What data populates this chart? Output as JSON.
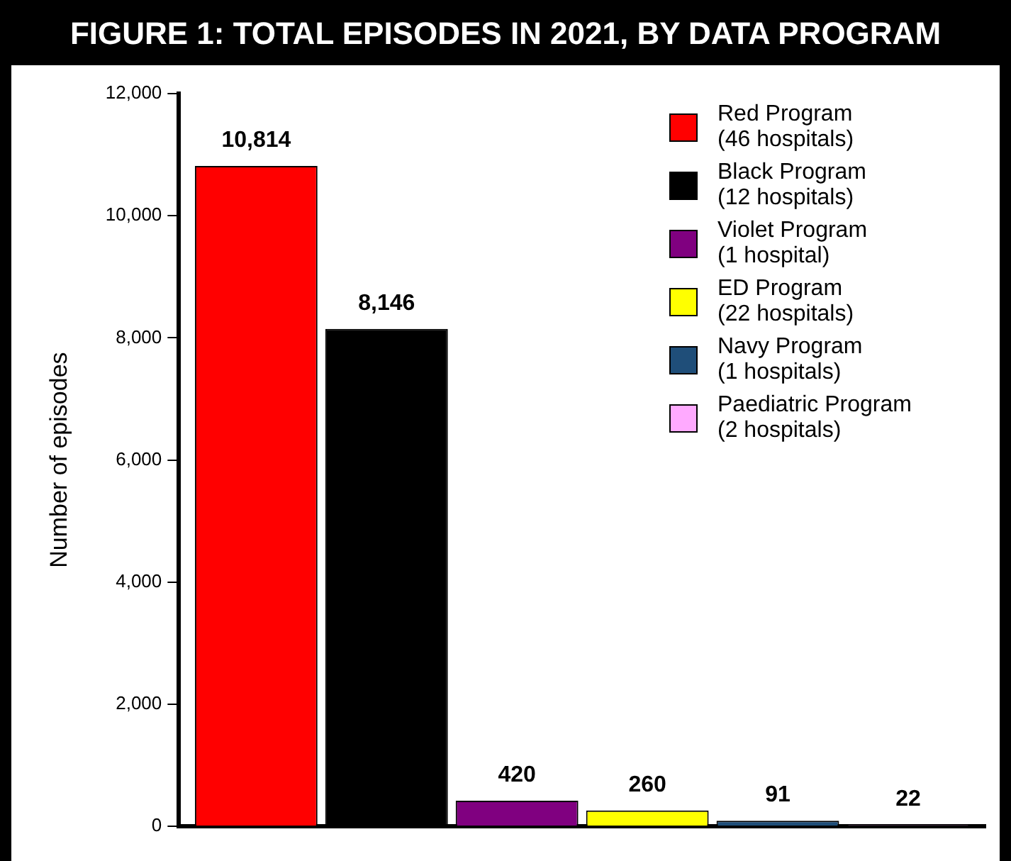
{
  "chart_data": {
    "type": "bar",
    "title": "FIGURE 1: TOTAL EPISODES IN 2021, BY DATA PROGRAM",
    "ylabel": "Number of episodes",
    "categories": [
      null
    ],
    "series": [
      {
        "name": "Red Program\n(46 hospitals)",
        "color": "#ff0000",
        "values": [
          10814
        ],
        "value_labels": [
          "10,814"
        ]
      },
      {
        "name": "Black Program\n(12 hospitals)",
        "color": "#000000",
        "values": [
          8146
        ],
        "value_labels": [
          "8,146"
        ]
      },
      {
        "name": "Violet Program\n(1 hospital)",
        "color": "#800080",
        "values": [
          420
        ],
        "value_labels": [
          "420"
        ]
      },
      {
        "name": "ED Program\n(22 hospitals)",
        "color": "#ffff00",
        "values": [
          260
        ],
        "value_labels": [
          "260"
        ]
      },
      {
        "name": "Navy Program\n(1 hospitals)",
        "color": "#1f4e79",
        "values": [
          91
        ],
        "value_labels": [
          "91"
        ]
      },
      {
        "name": "Paediatric Program\n(2 hospitals)",
        "color": "#ffaaff",
        "values": [
          22
        ],
        "value_labels": [
          "22"
        ]
      }
    ],
    "ylim": [
      0,
      12000
    ],
    "yticks": [
      0,
      {
        "value": 2000,
        "label": "2,000"
      },
      {
        "value": 4000,
        "label": "4,000"
      },
      {
        "value": 6000,
        "label": "6,000"
      },
      {
        "value": 8000,
        "label": "8,000"
      },
      {
        "value": 10000,
        "label": "10,000"
      },
      {
        "value": 12000,
        "label": "12,000"
      }
    ],
    "grid": false,
    "legend": "top right"
  }
}
